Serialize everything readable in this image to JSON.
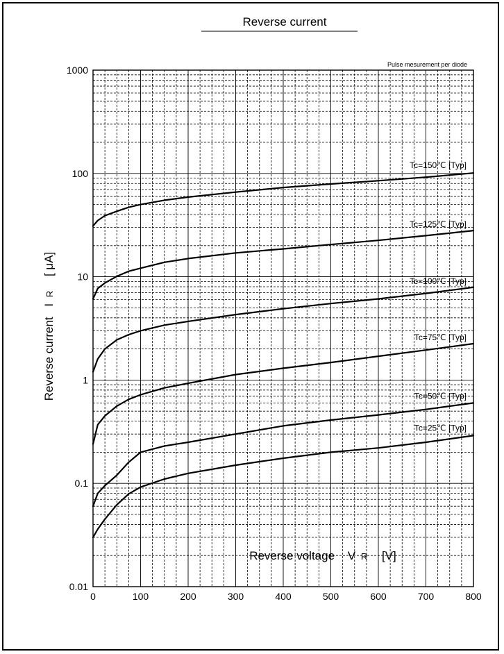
{
  "chart_data": {
    "type": "line",
    "title": "Reverse current",
    "annotation": "Pulse mesurement per diode",
    "xlabel": "Reverse voltage",
    "xlabel_symbol": "V",
    "xlabel_sub": "R",
    "xlabel_unit": "[V]",
    "ylabel": "Reverse current",
    "ylabel_symbol": "I",
    "ylabel_sub": "R",
    "ylabel_unit": "[ μA]",
    "xlim": [
      0,
      800
    ],
    "ylim": [
      0.01,
      1000
    ],
    "yscale": "log",
    "grid": true,
    "x_ticks": [
      "0",
      "100",
      "200",
      "300",
      "400",
      "500",
      "600",
      "700",
      "800"
    ],
    "y_ticks": [
      "0.01",
      "0.1",
      "1",
      "10",
      "100",
      "1000"
    ],
    "series": [
      {
        "name": "Tc=150℃ [Typ]",
        "x": [
          0,
          10,
          25,
          50,
          75,
          100,
          150,
          200,
          300,
          400,
          500,
          600,
          700,
          800
        ],
        "y": [
          31,
          35,
          39,
          43,
          47,
          50,
          55,
          59,
          66,
          73,
          79,
          85,
          92,
          101
        ]
      },
      {
        "name": "Tc=125℃ [Typ]",
        "x": [
          0,
          10,
          25,
          50,
          75,
          100,
          150,
          200,
          300,
          400,
          500,
          600,
          700,
          800
        ],
        "y": [
          6.1,
          7.7,
          8.7,
          10.1,
          11.3,
          12.1,
          13.8,
          15.0,
          17.0,
          18.6,
          20.5,
          22.5,
          25,
          28
        ]
      },
      {
        "name": "Tc=100℃ [Typ]",
        "x": [
          0,
          10,
          25,
          50,
          75,
          100,
          150,
          200,
          300,
          400,
          500,
          600,
          700,
          800
        ],
        "y": [
          1.2,
          1.6,
          2.0,
          2.45,
          2.75,
          3.0,
          3.4,
          3.7,
          4.3,
          4.9,
          5.5,
          6.1,
          6.9,
          7.9
        ]
      },
      {
        "name": "Tc=75℃ [Typ]",
        "x": [
          0,
          10,
          25,
          50,
          75,
          100,
          150,
          200,
          300,
          400,
          500,
          600,
          700,
          800
        ],
        "y": [
          0.24,
          0.37,
          0.45,
          0.56,
          0.65,
          0.72,
          0.84,
          0.93,
          1.13,
          1.3,
          1.48,
          1.7,
          1.95,
          2.25
        ]
      },
      {
        "name": "Tc=50℃ [Typ]",
        "x": [
          0,
          10,
          25,
          50,
          75,
          100,
          150,
          200,
          300,
          400,
          500,
          600,
          700,
          800
        ],
        "y": [
          0.06,
          0.08,
          0.095,
          0.12,
          0.16,
          0.2,
          0.23,
          0.25,
          0.3,
          0.36,
          0.41,
          0.46,
          0.52,
          0.6
        ]
      },
      {
        "name": "Tc=25℃ [Typ]",
        "x": [
          0,
          10,
          25,
          50,
          75,
          100,
          150,
          200,
          300,
          400,
          500,
          600,
          700,
          800
        ],
        "y": [
          0.03,
          0.036,
          0.045,
          0.062,
          0.079,
          0.092,
          0.11,
          0.125,
          0.15,
          0.175,
          0.2,
          0.22,
          0.25,
          0.29
        ]
      }
    ]
  }
}
